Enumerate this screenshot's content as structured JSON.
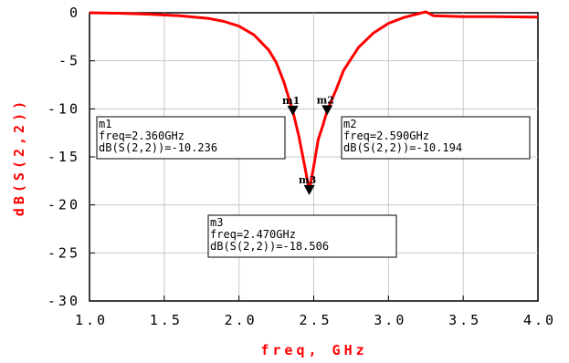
{
  "chart_data": {
    "type": "line",
    "xlabel": "freq, GHz",
    "ylabel": "dB(S(2,2))",
    "xlim": [
      1.0,
      4.0
    ],
    "ylim": [
      -30,
      0
    ],
    "xticks": [
      1.0,
      1.5,
      2.0,
      2.5,
      3.0,
      3.5,
      4.0
    ],
    "xtick_labels": [
      "1.0",
      "1.5",
      "2.0",
      "2.5",
      "3.0",
      "3.5",
      "4.0"
    ],
    "yticks": [
      0,
      -5,
      -10,
      -15,
      -20,
      -25,
      -30
    ],
    "ytick_labels": [
      "0",
      "-5",
      "-10",
      "-15",
      "-20",
      "-25",
      "-30"
    ],
    "grid": true,
    "line_color": "#ff0000",
    "axis_label_color": "#ff0000",
    "series": [
      {
        "x": [
          1.0,
          1.2,
          1.4,
          1.6,
          1.8,
          1.9,
          2.0,
          2.1,
          2.2,
          2.25,
          2.3,
          2.36,
          2.4,
          2.44,
          2.47,
          2.5,
          2.53,
          2.56,
          2.59,
          2.65,
          2.7,
          2.8,
          2.9,
          3.0,
          3.1,
          3.2,
          3.25,
          3.3,
          3.4,
          3.5,
          3.7,
          4.0
        ],
        "y": [
          0.0,
          -0.05,
          -0.15,
          -0.3,
          -0.6,
          -0.9,
          -1.4,
          -2.3,
          -3.9,
          -5.2,
          -7.2,
          -10.236,
          -12.8,
          -16.0,
          -18.506,
          -16.0,
          -13.2,
          -11.8,
          -10.194,
          -8.0,
          -6.0,
          -3.6,
          -2.1,
          -1.1,
          -0.5,
          -0.1,
          0.1,
          -0.3,
          -0.35,
          -0.4,
          -0.4,
          -0.45
        ]
      }
    ],
    "markers": [
      {
        "id": "m1",
        "x": 2.36,
        "y": -10.236,
        "label": "m1",
        "line1": "m1",
        "line2": "freq=2.360GHz",
        "line3": "dB(S(2,2))=-10.236"
      },
      {
        "id": "m2",
        "x": 2.59,
        "y": -10.194,
        "label": "m2",
        "line1": "m2",
        "line2": "freq=2.590GHz",
        "line3": "dB(S(2,2))=-10.194"
      },
      {
        "id": "m3",
        "x": 2.47,
        "y": -18.506,
        "label": "m3",
        "line1": "m3",
        "line2": "freq=2.470GHz",
        "line3": "dB(S(2,2))=-18.506"
      }
    ]
  }
}
